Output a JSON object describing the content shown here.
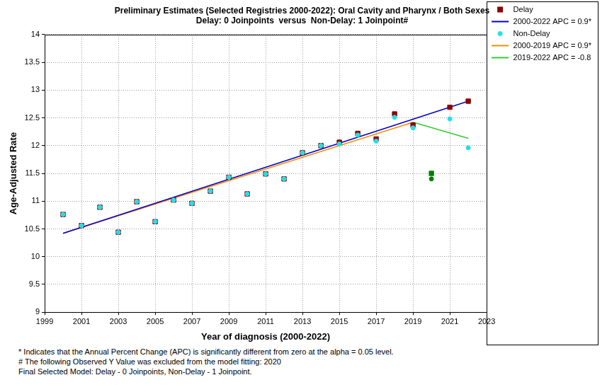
{
  "chart_data": {
    "type": "scatter",
    "title": [
      "Preliminary Estimates (Selected Registries 2000-2022): Oral Cavity and Pharynx / Both Sexes",
      "Delay: 0 Joinpoints  versus  Non-Delay: 1 Joinpoint#"
    ],
    "x_label": "Year of diagnosis (2000-2022)",
    "y_label": "Age-Adjusted Rate",
    "xlim": [
      1999,
      2023
    ],
    "xticks": [
      1999,
      2001,
      2003,
      2005,
      2007,
      2009,
      2011,
      2013,
      2015,
      2017,
      2019,
      2021,
      2023
    ],
    "ylim": [
      9,
      14
    ],
    "yticks": [
      9,
      9.5,
      10,
      10.5,
      11,
      11.5,
      12,
      12.5,
      13,
      13.5,
      14
    ],
    "grid": true,
    "legend": "top-right",
    "series": [
      {
        "name": "Delay",
        "type": "scatter",
        "marker": "square",
        "color": "#8b0000",
        "x": [
          2000,
          2001,
          2002,
          2003,
          2004,
          2005,
          2006,
          2007,
          2008,
          2009,
          2010,
          2011,
          2012,
          2013,
          2014,
          2015,
          2016,
          2017,
          2018,
          2019,
          2020,
          2021,
          2022
        ],
        "values": [
          10.76,
          10.56,
          10.89,
          10.44,
          10.99,
          10.63,
          11.02,
          10.96,
          11.18,
          11.43,
          11.13,
          11.49,
          11.4,
          11.87,
          12.0,
          12.06,
          12.22,
          12.12,
          12.57,
          12.37,
          11.5,
          12.69,
          12.8
        ],
        "colors": [
          "#8b0000",
          "#8b0000",
          "#8b0000",
          "#8b0000",
          "#8b0000",
          "#8b0000",
          "#8b0000",
          "#8b0000",
          "#8b0000",
          "#8b0000",
          "#8b0000",
          "#8b0000",
          "#8b0000",
          "#8b0000",
          "#8b0000",
          "#8b0000",
          "#8b0000",
          "#8b0000",
          "#8b0000",
          "#8b0000",
          "#008000",
          "#8b0000",
          "#8b0000"
        ]
      },
      {
        "name": "2000-2022 APC = 0.9*",
        "type": "line",
        "line_style": "solid",
        "color": "#0000cc",
        "x": [
          2000,
          2022
        ],
        "values": [
          10.42,
          12.8
        ]
      },
      {
        "name": "Non-Delay",
        "type": "scatter",
        "marker": "circle",
        "color": "#22e0e8",
        "x": [
          2000,
          2001,
          2002,
          2003,
          2004,
          2005,
          2006,
          2007,
          2008,
          2009,
          2010,
          2011,
          2012,
          2013,
          2014,
          2015,
          2016,
          2017,
          2018,
          2019,
          2020,
          2021,
          2022
        ],
        "values": [
          10.76,
          10.56,
          10.89,
          10.44,
          10.99,
          10.63,
          11.02,
          10.96,
          11.18,
          11.43,
          11.13,
          11.49,
          11.4,
          11.87,
          12.0,
          12.03,
          12.19,
          12.08,
          12.51,
          12.32,
          11.4,
          12.48,
          11.96
        ],
        "colors": [
          "#22e0e8",
          "#22e0e8",
          "#22e0e8",
          "#22e0e8",
          "#22e0e8",
          "#22e0e8",
          "#22e0e8",
          "#22e0e8",
          "#22e0e8",
          "#22e0e8",
          "#22e0e8",
          "#22e0e8",
          "#22e0e8",
          "#22e0e8",
          "#22e0e8",
          "#22e0e8",
          "#22e0e8",
          "#22e0e8",
          "#22e0e8",
          "#22e0e8",
          "#008000",
          "#22e0e8",
          "#22e0e8"
        ]
      },
      {
        "name": "2000-2019 APC = 0.9*",
        "type": "line",
        "line_style": "solid",
        "color": "#ff8c00",
        "x": [
          2000,
          2019
        ],
        "values": [
          10.42,
          12.42
        ]
      },
      {
        "name": "2019-2022 APC = -0.8",
        "type": "line",
        "line_style": "solid",
        "color": "#33cc33",
        "x": [
          2019,
          2022
        ],
        "values": [
          12.42,
          12.13
        ]
      }
    ],
    "footnotes": [
      "* Indicates that the Annual Percent Change (APC) is significantly different from zero at the alpha = 0.05 level.",
      "# The following Observed Y Value was excluded from the model fitting: 2020",
      "Final Selected Model: Delay - 0 Joinpoints, Non-Delay - 1 Joinpoint."
    ]
  }
}
